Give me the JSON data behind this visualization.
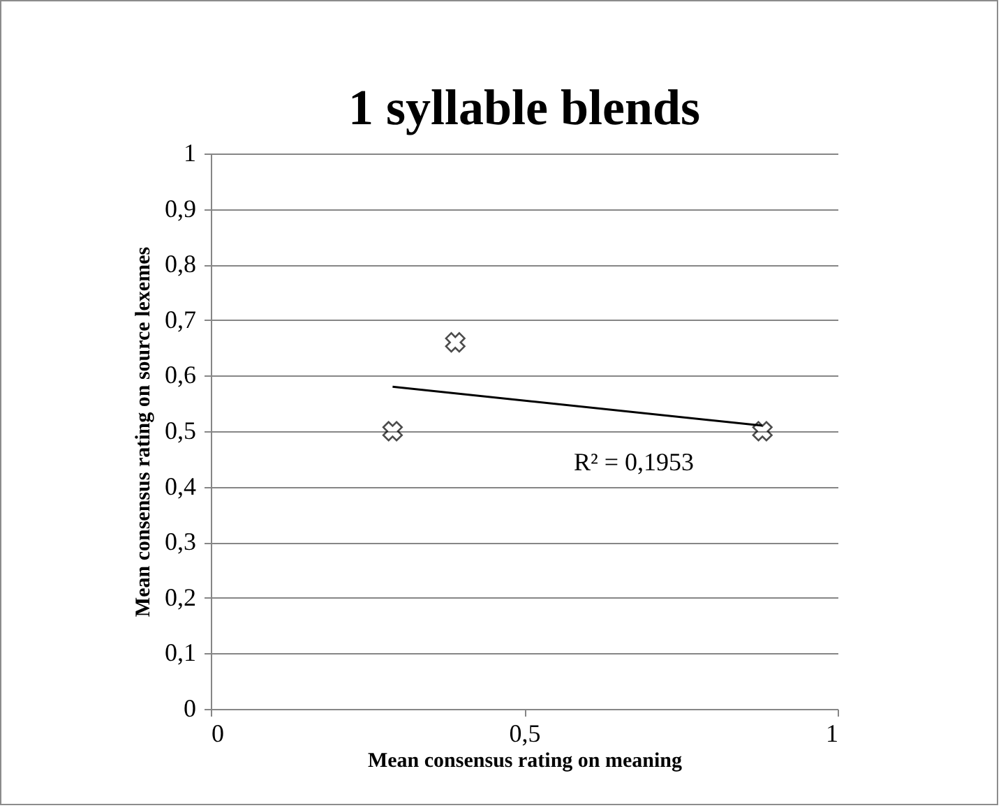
{
  "chart_data": {
    "type": "scatter",
    "title": "1 syllable blends",
    "xlabel": "Mean consensus rating on meaning",
    "ylabel": "Mean consensus rating  on source lexemes",
    "x": [
      0.29,
      0.39,
      0.88
    ],
    "marker": "cross",
    "grid": "y",
    "xlim": [
      0,
      1
    ],
    "xticks": [
      0,
      {
        "value": 0.5,
        "label": "0,5"
      },
      1
    ],
    "ylim": [
      0,
      1
    ],
    "yticks": [
      0,
      {
        "value": 0.1,
        "label": "0,1"
      },
      {
        "value": 0.2,
        "label": "0,2"
      },
      {
        "value": 0.3,
        "label": "0,3"
      },
      {
        "value": 0.4,
        "label": "0,4"
      },
      {
        "value": 0.5,
        "label": "0,5"
      },
      {
        "value": 0.6,
        "label": "0,6"
      },
      {
        "value": 0.7,
        "label": "0,7"
      },
      {
        "value": 0.8,
        "label": "0,8"
      },
      {
        "value": 0.9,
        "label": "0,9"
      },
      1
    ],
    "series": [
      {
        "color": "#000000",
        "values": [
          0.5,
          0.66,
          0.5
        ]
      },
      {
        "type": "line",
        "color": "#000000",
        "marker": "none",
        "x": [
          0.29,
          0.88
        ],
        "values": [
          0.58,
          0.51
        ]
      }
    ],
    "annotations": [
      "R² = 0,1953"
    ]
  }
}
